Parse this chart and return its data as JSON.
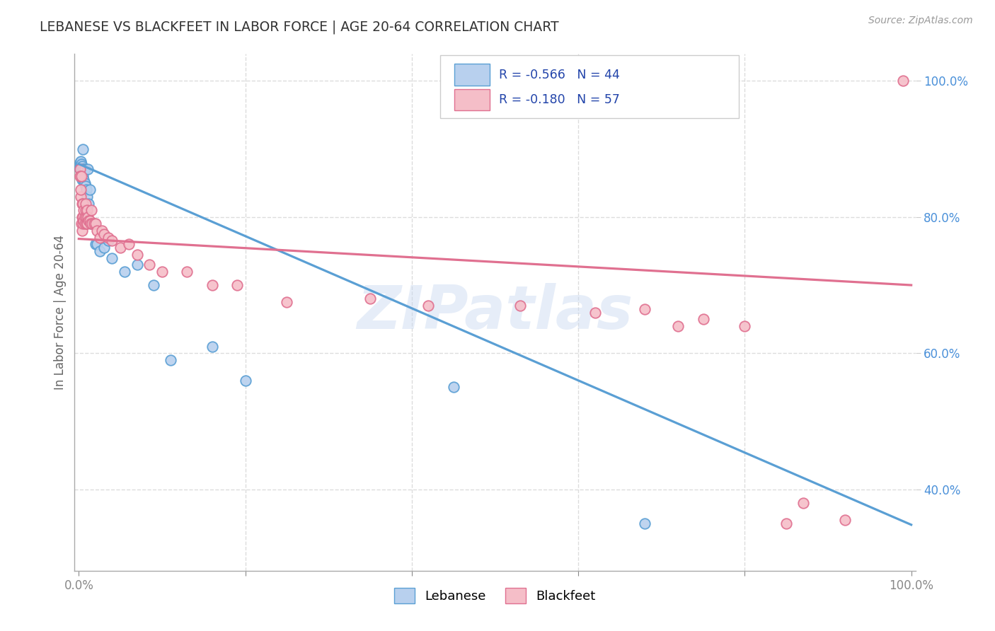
{
  "title": "LEBANESE VS BLACKFEET IN LABOR FORCE | AGE 20-64 CORRELATION CHART",
  "source": "Source: ZipAtlas.com",
  "ylabel": "In Labor Force | Age 20-64",
  "ytick_vals": [
    0.4,
    0.6,
    0.8,
    1.0
  ],
  "ytick_labels": [
    "40.0%",
    "60.0%",
    "80.0%",
    "100.0%"
  ],
  "legend_label1": "Lebanese",
  "legend_label2": "Blackfeet",
  "R1": "-0.566",
  "N1": "44",
  "R2": "-0.180",
  "N2": "57",
  "color_blue_face": "#B8D0EE",
  "color_blue_edge": "#5A9FD4",
  "color_pink_face": "#F5BEC8",
  "color_pink_edge": "#E07090",
  "color_blue_line": "#5A9FD4",
  "color_pink_line": "#E07090",
  "watermark": "ZIPatlas",
  "blue_x": [
    0.001,
    0.001,
    0.001,
    0.002,
    0.002,
    0.002,
    0.002,
    0.002,
    0.003,
    0.003,
    0.003,
    0.003,
    0.004,
    0.004,
    0.004,
    0.005,
    0.005,
    0.005,
    0.006,
    0.006,
    0.007,
    0.007,
    0.008,
    0.009,
    0.01,
    0.011,
    0.012,
    0.013,
    0.015,
    0.017,
    0.02,
    0.022,
    0.025,
    0.03,
    0.035,
    0.04,
    0.055,
    0.07,
    0.09,
    0.11,
    0.16,
    0.2,
    0.45,
    0.68
  ],
  "blue_y": [
    0.87,
    0.875,
    0.88,
    0.87,
    0.875,
    0.878,
    0.88,
    0.882,
    0.865,
    0.87,
    0.875,
    0.878,
    0.855,
    0.865,
    0.875,
    0.9,
    0.86,
    0.87,
    0.855,
    0.87,
    0.85,
    0.87,
    0.845,
    0.84,
    0.83,
    0.87,
    0.82,
    0.84,
    0.79,
    0.79,
    0.76,
    0.76,
    0.75,
    0.755,
    0.765,
    0.74,
    0.72,
    0.73,
    0.7,
    0.59,
    0.61,
    0.56,
    0.55,
    0.35
  ],
  "pink_x": [
    0.001,
    0.001,
    0.002,
    0.002,
    0.003,
    0.003,
    0.004,
    0.004,
    0.004,
    0.005,
    0.005,
    0.005,
    0.006,
    0.006,
    0.007,
    0.007,
    0.008,
    0.008,
    0.009,
    0.009,
    0.01,
    0.01,
    0.011,
    0.012,
    0.013,
    0.014,
    0.015,
    0.016,
    0.018,
    0.02,
    0.022,
    0.025,
    0.028,
    0.03,
    0.035,
    0.04,
    0.05,
    0.06,
    0.07,
    0.085,
    0.1,
    0.13,
    0.16,
    0.19,
    0.25,
    0.35,
    0.42,
    0.53,
    0.62,
    0.68,
    0.72,
    0.75,
    0.8,
    0.85,
    0.87,
    0.92,
    0.99
  ],
  "pink_y": [
    0.87,
    0.86,
    0.83,
    0.84,
    0.86,
    0.79,
    0.78,
    0.8,
    0.82,
    0.8,
    0.79,
    0.82,
    0.795,
    0.81,
    0.8,
    0.79,
    0.81,
    0.82,
    0.79,
    0.8,
    0.79,
    0.81,
    0.8,
    0.795,
    0.795,
    0.79,
    0.81,
    0.79,
    0.79,
    0.79,
    0.78,
    0.77,
    0.78,
    0.775,
    0.77,
    0.765,
    0.755,
    0.76,
    0.745,
    0.73,
    0.72,
    0.72,
    0.7,
    0.7,
    0.675,
    0.68,
    0.67,
    0.67,
    0.66,
    0.665,
    0.64,
    0.65,
    0.64,
    0.35,
    0.38,
    0.355,
    1.0
  ],
  "xlim": [
    -0.005,
    1.005
  ],
  "ylim": [
    0.28,
    1.04
  ],
  "grid_color": "#DCDCDC",
  "bg_color": "#FFFFFF",
  "blue_trend_x0": 0.0,
  "blue_trend_y0": 0.878,
  "blue_trend_x1": 1.0,
  "blue_trend_y1": 0.348,
  "pink_trend_x0": 0.0,
  "pink_trend_y0": 0.768,
  "pink_trend_x1": 1.0,
  "pink_trend_y1": 0.7
}
